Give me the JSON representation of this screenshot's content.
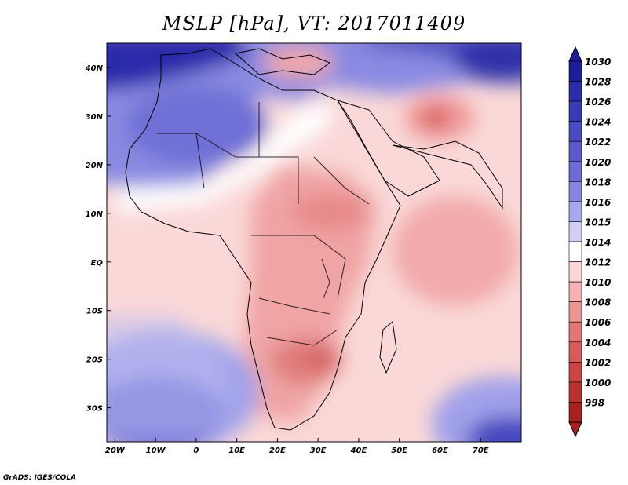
{
  "title": "MSLP [hPa], VT: 2017011409",
  "credit": "GrADS: IGES/COLA",
  "map": {
    "lon_range": [
      -22,
      80
    ],
    "lat_range": [
      -37,
      45
    ],
    "lon_ticks": [
      {
        "value": -20,
        "label": "20W"
      },
      {
        "value": -10,
        "label": "10W"
      },
      {
        "value": 0,
        "label": "0"
      },
      {
        "value": 10,
        "label": "10E"
      },
      {
        "value": 20,
        "label": "20E"
      },
      {
        "value": 30,
        "label": "30E"
      },
      {
        "value": 40,
        "label": "40E"
      },
      {
        "value": 50,
        "label": "50E"
      },
      {
        "value": 60,
        "label": "60E"
      },
      {
        "value": 70,
        "label": "70E"
      }
    ],
    "lat_ticks": [
      {
        "value": 40,
        "label": "40N"
      },
      {
        "value": 30,
        "label": "30N"
      },
      {
        "value": 20,
        "label": "20N"
      },
      {
        "value": 10,
        "label": "10N"
      },
      {
        "value": 0,
        "label": "EQ"
      },
      {
        "value": -10,
        "label": "10S"
      },
      {
        "value": -20,
        "label": "20S"
      },
      {
        "value": -30,
        "label": "30S"
      }
    ]
  },
  "colorbar": {
    "labels": [
      "1030",
      "1028",
      "1026",
      "1024",
      "1022",
      "1020",
      "1018",
      "1016",
      "1015",
      "1014",
      "1012",
      "1010",
      "1008",
      "1006",
      "1004",
      "1002",
      "1000",
      "998"
    ],
    "colors": [
      "#1e1e9a",
      "#2c2cab",
      "#3a3ab8",
      "#4a4ac2",
      "#5a5acc",
      "#6c6cd6",
      "#8686e0",
      "#a8a8ec",
      "#cfcff6",
      "#ffffff",
      "#fad6d6",
      "#f4b2b2",
      "#ec9494",
      "#e27676",
      "#d85a5a",
      "#cc4444",
      "#bc3030",
      "#a82020"
    ]
  }
}
